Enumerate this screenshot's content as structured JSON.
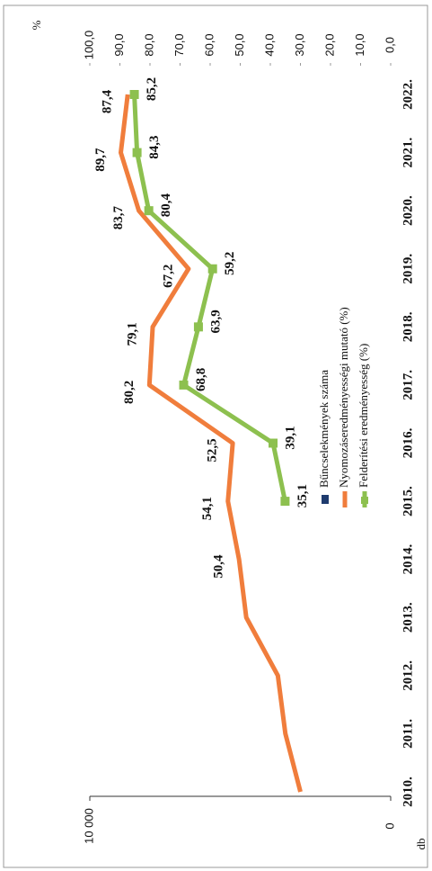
{
  "chart_data": {
    "type": "line",
    "x_label": "db",
    "y2_label": "%",
    "categories": [
      "2010.",
      "2011.",
      "2012.",
      "2013.",
      "2014.",
      "2015.",
      "2016.",
      "2017.",
      "2018.",
      "2019.",
      "2020.",
      "2021.",
      "2022."
    ],
    "ylim": [
      0,
      10000
    ],
    "yticks": [
      0,
      {
        "value": 10000,
        "label": "10 000"
      }
    ],
    "y2lim": [
      0,
      100
    ],
    "y2ticks": [
      {
        "value": 0,
        "label": "0,0"
      },
      {
        "value": 10,
        "label": "10,0"
      },
      {
        "value": 20,
        "label": "20,0"
      },
      {
        "value": 30,
        "label": "30,0"
      },
      {
        "value": 40,
        "label": "40,0"
      },
      {
        "value": 50,
        "label": "50,0"
      },
      {
        "value": 60,
        "label": "60,0"
      },
      {
        "value": 70,
        "label": "70,0"
      },
      {
        "value": 80,
        "label": "80,0"
      },
      {
        "value": 90,
        "label": "90,0"
      },
      {
        "value": 100,
        "label": "100,0"
      }
    ],
    "series": [
      {
        "name": "Bűncselekmények száma",
        "color": "#1f3b6e",
        "values": [
          null,
          null,
          null,
          null,
          null,
          null,
          null,
          null,
          null,
          null,
          null,
          null,
          null
        ]
      },
      {
        "name": "Nyomozáseredményességi mutató (%)",
        "color": "#f07d3c",
        "axis": "y2",
        "values": [
          30,
          35,
          37.5,
          48,
          50.4,
          54.1,
          52.5,
          80.2,
          79.1,
          67.2,
          83.7,
          89.7,
          87.4
        ],
        "value_labels": [
          null,
          null,
          null,
          null,
          "50,4",
          "54,1",
          "52,5",
          "80,2",
          "79,1",
          "67,2",
          "83,7",
          "89,7",
          "87,4"
        ]
      },
      {
        "name": "Felderítési eredményesség (%)",
        "color": "#8dc04f",
        "axis": "y2",
        "values": [
          null,
          null,
          null,
          null,
          null,
          35.1,
          39.1,
          68.8,
          63.9,
          59.2,
          80.4,
          84.3,
          85.2
        ],
        "value_labels": [
          null,
          null,
          null,
          null,
          null,
          "35,1",
          "39,1",
          "68,8",
          "63,9",
          "59,2",
          "80,4",
          "84,3",
          "85,2"
        ]
      }
    ]
  }
}
